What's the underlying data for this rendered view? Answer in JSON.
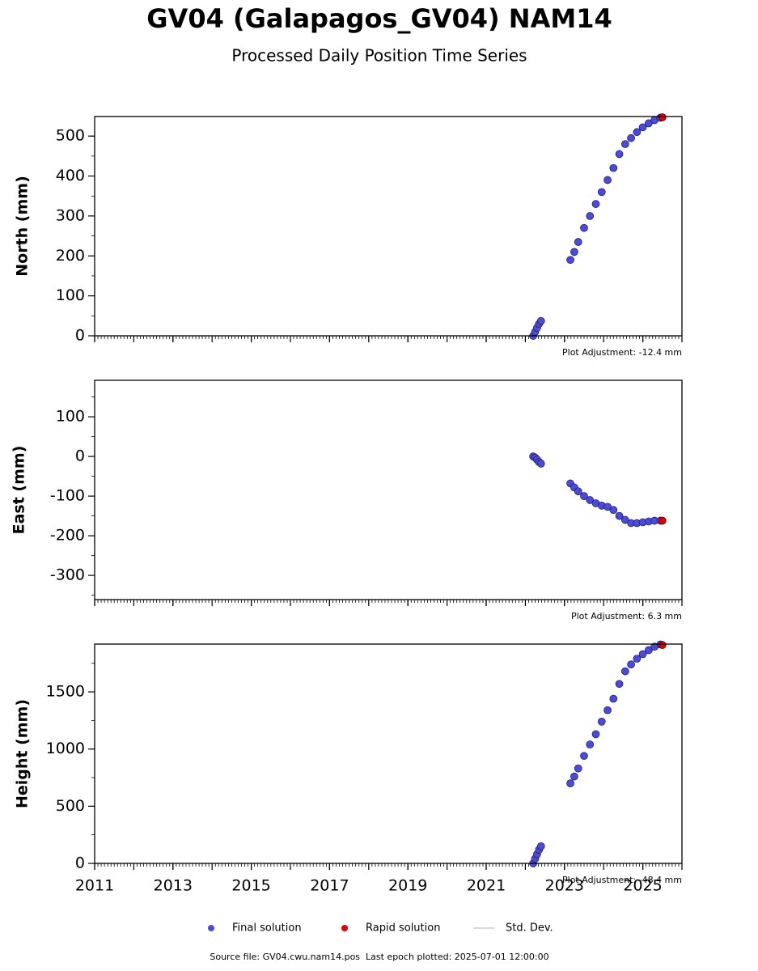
{
  "title": "GV04 (Galapagos_GV04) NAM14",
  "subtitle": "Processed Daily Position Time Series",
  "footer": "Source file: GV04.cwu.nam14.pos  Last epoch plotted: 2025-07-01 12:00:00",
  "legend": {
    "std_dev_label": "Std. Dev.",
    "std_dev_color": "#cccccc"
  },
  "chart_data": [
    {
      "type": "scatter",
      "y_label": "North (mm)",
      "annotation": "Plot Adjustment: -12.4 mm",
      "xlim": [
        2011,
        2026
      ],
      "xticks": [
        2011,
        2013,
        2015,
        2017,
        2019,
        2021,
        2023,
        2025
      ],
      "ylim": [
        0,
        549
      ],
      "yticks": [
        0,
        100,
        200,
        300,
        400,
        500
      ],
      "series": [
        {
          "name": "Final solution",
          "color": "#4a4ae0",
          "x": [
            2022.2,
            2022.25,
            2022.3,
            2022.35,
            2022.4,
            2023.15,
            2023.25,
            2023.35,
            2023.5,
            2023.65,
            2023.8,
            2023.95,
            2024.1,
            2024.25,
            2024.4,
            2024.55,
            2024.7,
            2024.85,
            2025.0,
            2025.15,
            2025.3,
            2025.45
          ],
          "values": [
            0,
            10,
            20,
            30,
            37,
            190,
            210,
            235,
            270,
            300,
            330,
            360,
            390,
            420,
            455,
            480,
            495,
            510,
            522,
            532,
            540,
            546
          ]
        },
        {
          "name": "Rapid solution",
          "color": "#e00000",
          "x": [
            2025.5
          ],
          "values": [
            547
          ]
        }
      ]
    },
    {
      "type": "scatter",
      "y_label": "East (mm)",
      "annotation": "Plot Adjustment: 6.3 mm",
      "xlim": [
        2011,
        2026
      ],
      "xticks": [
        2011,
        2013,
        2015,
        2017,
        2019,
        2021,
        2023,
        2025
      ],
      "ylim": [
        -361,
        192
      ],
      "yticks": [
        -300,
        -200,
        -100,
        0,
        100
      ],
      "series": [
        {
          "name": "Final solution",
          "color": "#4a4ae0",
          "x": [
            2022.2,
            2022.25,
            2022.3,
            2022.35,
            2022.4,
            2023.15,
            2023.25,
            2023.35,
            2023.5,
            2023.65,
            2023.8,
            2023.95,
            2024.1,
            2024.25,
            2024.4,
            2024.55,
            2024.7,
            2024.85,
            2025.0,
            2025.15,
            2025.3,
            2025.45
          ],
          "values": [
            0,
            -3,
            -8,
            -14,
            -18,
            -68,
            -78,
            -88,
            -100,
            -110,
            -118,
            -124,
            -127,
            -135,
            -150,
            -160,
            -168,
            -168,
            -166,
            -164,
            -162,
            -162
          ]
        },
        {
          "name": "Rapid solution",
          "color": "#e00000",
          "x": [
            2025.5
          ],
          "values": [
            -162
          ]
        }
      ]
    },
    {
      "type": "scatter",
      "y_label": "Height (mm)",
      "annotation": "Plot Adjustment: -48.4 mm",
      "xlim": [
        2011,
        2026
      ],
      "xticks": [
        2011,
        2013,
        2015,
        2017,
        2019,
        2021,
        2023,
        2025
      ],
      "ylim": [
        0,
        1918
      ],
      "yticks": [
        0,
        500,
        1000,
        1500
      ],
      "series": [
        {
          "name": "Final solution",
          "color": "#4a4ae0",
          "x": [
            2022.2,
            2022.25,
            2022.3,
            2022.35,
            2022.4,
            2023.15,
            2023.25,
            2023.35,
            2023.5,
            2023.65,
            2023.8,
            2023.95,
            2024.1,
            2024.25,
            2024.4,
            2024.55,
            2024.7,
            2024.85,
            2025.0,
            2025.15,
            2025.3,
            2025.45
          ],
          "values": [
            0,
            40,
            80,
            120,
            150,
            700,
            760,
            830,
            940,
            1040,
            1130,
            1240,
            1340,
            1440,
            1570,
            1680,
            1740,
            1790,
            1830,
            1865,
            1895,
            1915
          ]
        },
        {
          "name": "Rapid solution",
          "color": "#e00000",
          "x": [
            2025.5
          ],
          "values": [
            1910
          ]
        }
      ]
    }
  ]
}
